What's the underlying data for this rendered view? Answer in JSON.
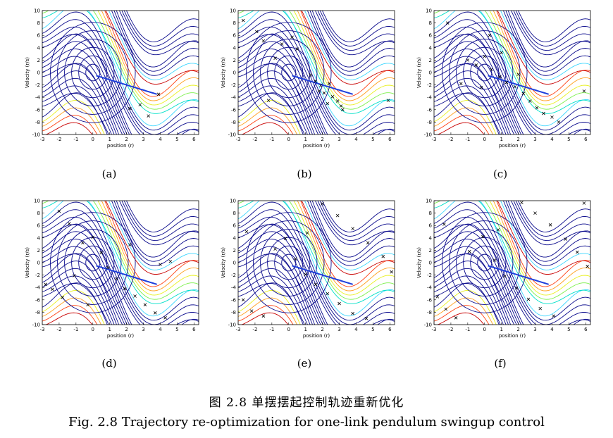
{
  "figure": {
    "caption_cn": "图 2.8 单摆摆起控制轨迹重新优化",
    "caption_en": "Fig. 2.8 Trajectory re-optimization for one-link pendulum swingup control"
  },
  "chart_data": [
    {
      "id": "a",
      "type": "scatter",
      "subplot_label": "(a)",
      "xlabel": "position (r)",
      "ylabel": "Velocity (r/s)",
      "xlim": [
        -3,
        6.28
      ],
      "ylim": [
        -10,
        10
      ],
      "x_ticks": [
        -3,
        -2,
        -1,
        0,
        1,
        2,
        3,
        4,
        5,
        6
      ],
      "y_ticks": [
        -10,
        -8,
        -6,
        -4,
        -2,
        0,
        2,
        4,
        6,
        8,
        10
      ],
      "contour_lines": "value-function contours",
      "samples": [
        {
          "x": 2.8,
          "y": -5.2
        },
        {
          "x": 3.9,
          "y": -3.5
        },
        {
          "x": 2.2,
          "y": -5.8
        },
        {
          "x": 3.3,
          "y": -7.0
        }
      ]
    },
    {
      "id": "b",
      "type": "scatter",
      "subplot_label": "(b)",
      "xlabel": "position (r)",
      "ylabel": "Velocity (r/s)",
      "xlim": [
        -3,
        6.28
      ],
      "ylim": [
        -10,
        10
      ],
      "x_ticks": [
        -3,
        -2,
        -1,
        0,
        1,
        2,
        3,
        4,
        5,
        6
      ],
      "y_ticks": [
        -10,
        -8,
        -6,
        -4,
        -2,
        0,
        2,
        4,
        6,
        8,
        10
      ],
      "contour_lines": "value-function contours",
      "samples": [
        {
          "x": -2.7,
          "y": 8.4
        },
        {
          "x": -1.5,
          "y": 5.1
        },
        {
          "x": -0.8,
          "y": 2.3
        },
        {
          "x": -0.4,
          "y": 4.6
        },
        {
          "x": 0.2,
          "y": 5.7
        },
        {
          "x": 0.5,
          "y": 3.8
        },
        {
          "x": 1.3,
          "y": -0.4
        },
        {
          "x": 1.6,
          "y": -1.4
        },
        {
          "x": 1.9,
          "y": -2.1
        },
        {
          "x": 2.1,
          "y": -3.3
        },
        {
          "x": 2.4,
          "y": -1.8
        },
        {
          "x": 2.6,
          "y": -3.9
        },
        {
          "x": 2.9,
          "y": -4.6
        },
        {
          "x": 3.1,
          "y": -5.4
        },
        {
          "x": 2.3,
          "y": -5.0
        },
        {
          "x": 1.8,
          "y": -3.0
        },
        {
          "x": 3.2,
          "y": -6.0
        },
        {
          "x": -1.2,
          "y": -4.5
        },
        {
          "x": 5.9,
          "y": -4.5
        },
        {
          "x": -1.9,
          "y": 6.6
        }
      ]
    },
    {
      "id": "c",
      "type": "scatter",
      "subplot_label": "(c)",
      "xlabel": "position (r)",
      "ylabel": "Velocity (r/s)",
      "xlim": [
        -3,
        6.28
      ],
      "ylim": [
        -10,
        10
      ],
      "x_ticks": [
        -3,
        -2,
        -1,
        0,
        1,
        2,
        3,
        4,
        5,
        6
      ],
      "y_ticks": [
        -10,
        -8,
        -6,
        -4,
        -2,
        0,
        2,
        4,
        6,
        8,
        10
      ],
      "contour_lines": "value-function contours",
      "samples": [
        {
          "x": -1.0,
          "y": 2.0
        },
        {
          "x": -0.5,
          "y": 1.2
        },
        {
          "x": 0.0,
          "y": 2.6
        },
        {
          "x": 0.4,
          "y": 0.5
        },
        {
          "x": 0.9,
          "y": -0.7
        },
        {
          "x": 1.3,
          "y": -1.6
        },
        {
          "x": 1.8,
          "y": -2.3
        },
        {
          "x": 2.3,
          "y": -3.4
        },
        {
          "x": 2.7,
          "y": -4.6
        },
        {
          "x": 3.1,
          "y": -5.7
        },
        {
          "x": 3.5,
          "y": -6.6
        },
        {
          "x": 4.0,
          "y": -7.2
        },
        {
          "x": 4.4,
          "y": -8.0
        },
        {
          "x": 1.0,
          "y": 3.2
        },
        {
          "x": -0.2,
          "y": -2.4
        },
        {
          "x": 2.0,
          "y": -0.3
        },
        {
          "x": -2.2,
          "y": 8.0
        },
        {
          "x": 0.3,
          "y": 6.0
        },
        {
          "x": 5.9,
          "y": -3.0
        },
        {
          "x": -1.4,
          "y": -1.8
        }
      ]
    },
    {
      "id": "d",
      "type": "scatter",
      "subplot_label": "(d)",
      "xlabel": "position (r)",
      "ylabel": "Velocity (r/s)",
      "xlim": [
        -3,
        6.28
      ],
      "ylim": [
        -10,
        10
      ],
      "x_ticks": [
        -3,
        -2,
        -1,
        0,
        1,
        2,
        3,
        4,
        5,
        6
      ],
      "y_ticks": [
        -10,
        -8,
        -6,
        -4,
        -2,
        0,
        2,
        4,
        6,
        8,
        10
      ],
      "contour_lines": "value-function contours",
      "samples": [
        {
          "x": -2.8,
          "y": -3.5
        },
        {
          "x": -2.4,
          "y": -4.3
        },
        {
          "x": -1.8,
          "y": -5.6
        },
        {
          "x": -1.1,
          "y": -2.1
        },
        {
          "x": -0.6,
          "y": 3.2
        },
        {
          "x": 0.0,
          "y": 4.1
        },
        {
          "x": 0.5,
          "y": 1.6
        },
        {
          "x": 0.9,
          "y": -0.8
        },
        {
          "x": 1.4,
          "y": -2.6
        },
        {
          "x": 1.9,
          "y": -4.2
        },
        {
          "x": 2.5,
          "y": -5.4
        },
        {
          "x": 3.1,
          "y": -6.8
        },
        {
          "x": 3.7,
          "y": -8.1
        },
        {
          "x": 4.3,
          "y": -8.9
        },
        {
          "x": 4.0,
          "y": -0.3
        },
        {
          "x": 4.6,
          "y": 0.2
        },
        {
          "x": -2.0,
          "y": 8.3
        },
        {
          "x": -1.4,
          "y": 6.3
        },
        {
          "x": 2.2,
          "y": 2.9
        },
        {
          "x": -0.3,
          "y": -6.8
        }
      ]
    },
    {
      "id": "e",
      "type": "scatter",
      "subplot_label": "(e)",
      "xlabel": "position (r)",
      "ylabel": "Velocity (r/s)",
      "xlim": [
        -3,
        6.28
      ],
      "ylim": [
        -10,
        10
      ],
      "x_ticks": [
        -3,
        -2,
        -1,
        0,
        1,
        2,
        3,
        4,
        5,
        6
      ],
      "y_ticks": [
        -10,
        -8,
        -6,
        -4,
        -2,
        0,
        2,
        4,
        6,
        8,
        10
      ],
      "contour_lines": "value-function contours",
      "samples": [
        {
          "x": -2.7,
          "y": -6.0
        },
        {
          "x": -2.2,
          "y": -7.8
        },
        {
          "x": -1.5,
          "y": -8.6
        },
        {
          "x": -0.8,
          "y": 2.2
        },
        {
          "x": -0.2,
          "y": 3.9
        },
        {
          "x": 0.4,
          "y": 0.6
        },
        {
          "x": 1.0,
          "y": -1.9
        },
        {
          "x": 1.6,
          "y": -3.5
        },
        {
          "x": 2.3,
          "y": -5.0
        },
        {
          "x": 3.0,
          "y": -6.6
        },
        {
          "x": 3.8,
          "y": -8.2
        },
        {
          "x": 4.6,
          "y": -9.0
        },
        {
          "x": 2.0,
          "y": 9.5
        },
        {
          "x": 2.9,
          "y": 7.6
        },
        {
          "x": 3.8,
          "y": 5.5
        },
        {
          "x": 4.7,
          "y": 3.2
        },
        {
          "x": 5.6,
          "y": 1.0
        },
        {
          "x": 6.1,
          "y": -1.5
        },
        {
          "x": -2.5,
          "y": 5.0
        },
        {
          "x": 1.1,
          "y": 4.8
        }
      ]
    },
    {
      "id": "f",
      "type": "scatter",
      "subplot_label": "(f)",
      "xlabel": "position (r)",
      "ylabel": "Velocity (r/s)",
      "xlim": [
        -3,
        6.28
      ],
      "ylim": [
        -10,
        10
      ],
      "x_ticks": [
        -3,
        -2,
        -1,
        0,
        1,
        2,
        3,
        4,
        5,
        6
      ],
      "y_ticks": [
        -10,
        -8,
        -6,
        -4,
        -2,
        0,
        2,
        4,
        6,
        8,
        10
      ],
      "contour_lines": "value-function contours",
      "samples": [
        {
          "x": -2.8,
          "y": -5.5
        },
        {
          "x": -2.3,
          "y": -7.5
        },
        {
          "x": -1.7,
          "y": -8.9
        },
        {
          "x": -0.9,
          "y": 1.8
        },
        {
          "x": -0.1,
          "y": 4.2
        },
        {
          "x": 0.6,
          "y": 0.4
        },
        {
          "x": 1.2,
          "y": -2.2
        },
        {
          "x": 1.9,
          "y": -4.1
        },
        {
          "x": 2.6,
          "y": -5.9
        },
        {
          "x": 3.3,
          "y": -7.4
        },
        {
          "x": 4.1,
          "y": -8.6
        },
        {
          "x": 2.2,
          "y": 9.7
        },
        {
          "x": 3.0,
          "y": 8.0
        },
        {
          "x": 3.9,
          "y": 6.1
        },
        {
          "x": 4.8,
          "y": 3.8
        },
        {
          "x": 5.5,
          "y": 1.7
        },
        {
          "x": 6.1,
          "y": -0.6
        },
        {
          "x": 5.9,
          "y": 9.6
        },
        {
          "x": -2.4,
          "y": 6.2
        },
        {
          "x": 0.8,
          "y": 5.3
        }
      ]
    }
  ],
  "colors": {
    "contour_low": "#0a0a8c",
    "trajectory": "#1f3fdc",
    "marker": "#000000",
    "jet_hot": [
      "#3fd7ff",
      "#00e0c8",
      "#7bf04a",
      "#e8f020",
      "#ffa020",
      "#ff4010",
      "#c80000"
    ]
  }
}
